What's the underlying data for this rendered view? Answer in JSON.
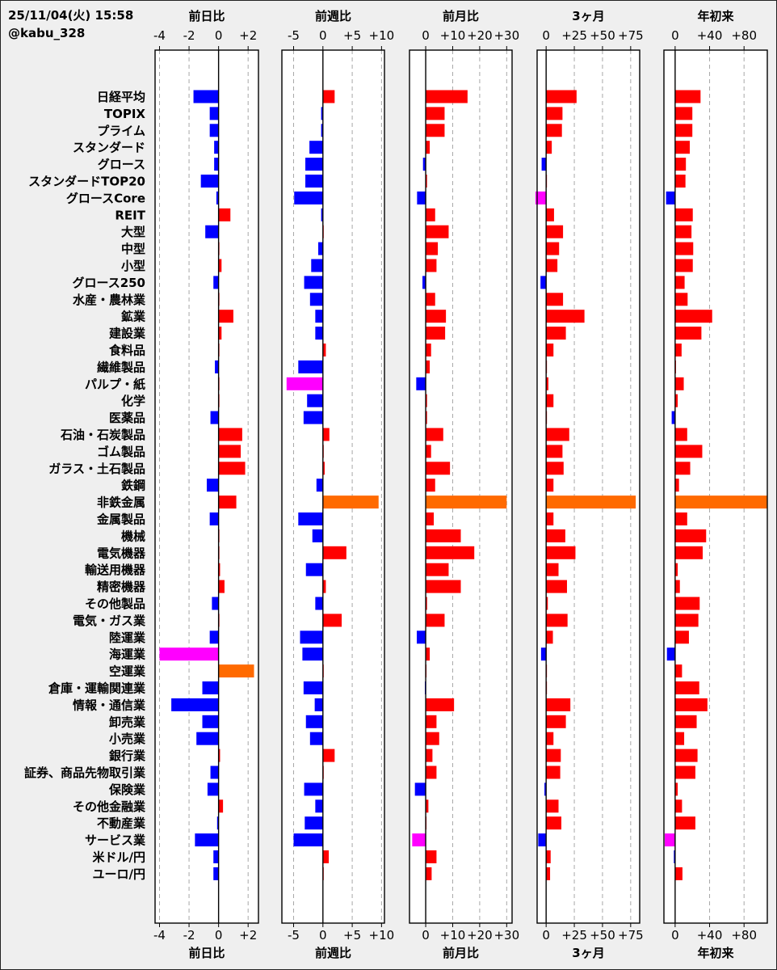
{
  "header": {
    "timestamp": "25/11/04(火) 15:58",
    "account": "@kabu_328"
  },
  "colors": {
    "positive": "#ff0000",
    "negative": "#0000ff",
    "top": "#ff6a00",
    "bottom": "#ff00ff"
  },
  "chart_data": {
    "type": "bar",
    "orientation": "horizontal",
    "categories": [
      "日経平均",
      "TOPIX",
      "プライム",
      "スタンダード",
      "グロース",
      "スタンダードTOP20",
      "グロースCore",
      "REIT",
      "大型",
      "中型",
      "小型",
      "グロース250",
      "水産・農林業",
      "鉱業",
      "建設業",
      "食料品",
      "繊維製品",
      "パルプ・紙",
      "化学",
      "医薬品",
      "石油・石炭製品",
      "ゴム製品",
      "ガラス・土石製品",
      "鉄鋼",
      "非鉄金属",
      "金属製品",
      "機械",
      "電気機器",
      "輸送用機器",
      "精密機器",
      "その他製品",
      "電気・ガス業",
      "陸運業",
      "海運業",
      "空運業",
      "倉庫・運輸関連業",
      "情報・通信業",
      "卸売業",
      "小売業",
      "銀行業",
      "証券、商品先物取引業",
      "保険業",
      "その他金融業",
      "不動産業",
      "サービス業",
      "米ドル/円",
      "ユーロ/円"
    ],
    "panels": [
      {
        "title": "前日比",
        "xlim": [
          -4.3,
          2.7
        ],
        "ticks": [
          -4,
          -2,
          0,
          2
        ],
        "tick_labels": [
          "-4",
          "-2",
          "0",
          "+2"
        ],
        "values": [
          -1.7,
          -0.6,
          -0.6,
          -0.3,
          -0.3,
          -1.2,
          -0.15,
          0.8,
          -0.9,
          0.05,
          0.2,
          -0.35,
          0.05,
          1.0,
          0.2,
          0.05,
          -0.25,
          0.05,
          0.05,
          -0.55,
          1.6,
          1.5,
          1.8,
          -0.8,
          1.2,
          -0.6,
          0.05,
          0.05,
          0.1,
          0.4,
          -0.45,
          0.05,
          -0.6,
          -4.0,
          2.4,
          -1.1,
          -3.2,
          -1.1,
          -1.5,
          0.1,
          -0.55,
          -0.75,
          0.3,
          -0.1,
          -1.6,
          -0.35,
          -0.35
        ]
      },
      {
        "title": "前週比",
        "xlim": [
          -7,
          10.5
        ],
        "ticks": [
          -5,
          0,
          5,
          10
        ],
        "tick_labels": [
          "-5",
          "0",
          "+5",
          "+10"
        ],
        "values": [
          2.0,
          -0.3,
          -0.3,
          -2.3,
          -3.0,
          -3.0,
          -4.9,
          -0.3,
          0.05,
          -0.8,
          -2.0,
          -3.2,
          -2.2,
          -1.3,
          -1.3,
          0.5,
          -4.2,
          -6.2,
          -2.7,
          -3.3,
          1.1,
          0.05,
          0.3,
          -1.1,
          9.5,
          -4.2,
          -1.8,
          4.0,
          -2.9,
          0.5,
          -1.3,
          3.2,
          -3.9,
          -3.5,
          0.05,
          -3.3,
          -1.4,
          -2.9,
          -2.2,
          2.0,
          0.05,
          -3.2,
          -1.3,
          -3.1,
          -5.0,
          1.0,
          0.05
        ]
      },
      {
        "title": "前月比",
        "xlim": [
          -6,
          32
        ],
        "ticks": [
          0,
          10,
          20,
          30
        ],
        "tick_labels": [
          "0",
          "+10",
          "+20",
          "+30"
        ],
        "values": [
          15.5,
          7.0,
          7.0,
          1.5,
          -1.0,
          0.5,
          -3.2,
          3.5,
          8.5,
          4.5,
          4.0,
          -1.2,
          3.5,
          7.5,
          7.2,
          2.0,
          1.5,
          -3.5,
          0.5,
          0.5,
          6.5,
          2.0,
          9.0,
          3.5,
          30.0,
          3.0,
          13.0,
          18.0,
          8.5,
          13.0,
          0.5,
          7.0,
          -3.3,
          1.5,
          0.05,
          -0.3,
          10.5,
          4.0,
          5.0,
          2.5,
          4.0,
          -4.0,
          1.0,
          0.05,
          -5.0,
          4.0,
          2.2
        ]
      },
      {
        "title": "3ヶ月",
        "xlim": [
          -8,
          83
        ],
        "ticks": [
          0,
          25,
          50,
          75
        ],
        "tick_labels": [
          "0",
          "+25",
          "+50",
          "+75"
        ],
        "values": [
          27.0,
          14.5,
          14.0,
          5.0,
          -4.0,
          0.05,
          -9.5,
          7.0,
          15.0,
          11.5,
          10.0,
          -5.0,
          15.0,
          34.0,
          17.5,
          6.5,
          0.05,
          2.0,
          6.5,
          0.05,
          20.5,
          14.5,
          15.5,
          6.5,
          79.5,
          6.5,
          17.0,
          26.0,
          11.0,
          18.5,
          1.5,
          19.0,
          6.0,
          -4.5,
          0.5,
          0.5,
          21.5,
          17.5,
          6.5,
          13.0,
          12.5,
          -1.5,
          11.0,
          13.5,
          -7.0,
          4.0,
          3.5
        ]
      },
      {
        "title": "年初来",
        "xlim": [
          -13,
          107
        ],
        "ticks": [
          0,
          40,
          80
        ],
        "tick_labels": [
          "0",
          "+40",
          "+80"
        ],
        "values": [
          29.5,
          20.0,
          20.0,
          17.0,
          12.5,
          12.0,
          -10.5,
          20.5,
          19.0,
          21.0,
          20.5,
          11.0,
          14.5,
          43.0,
          30.5,
          7.5,
          1.0,
          10.0,
          3.0,
          -4.0,
          14.0,
          31.5,
          17.5,
          4.5,
          106.5,
          14.0,
          36.0,
          32.0,
          3.0,
          5.5,
          28.5,
          27.0,
          16.0,
          -9.5,
          8.0,
          28.0,
          37.5,
          25.0,
          10.5,
          26.0,
          23.5,
          3.0,
          8.0,
          23.5,
          -12.0,
          -1.5,
          8.5
        ]
      }
    ]
  }
}
